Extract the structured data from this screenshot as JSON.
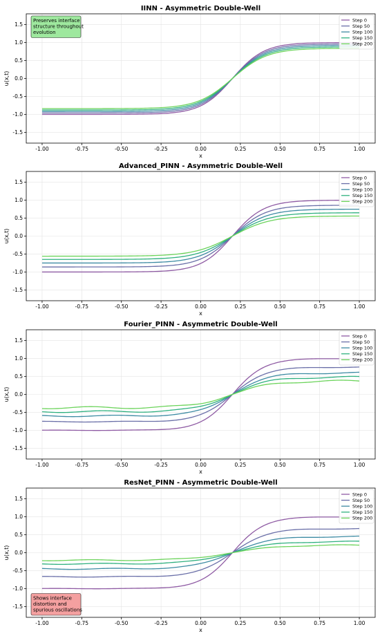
{
  "colors": {
    "step_0": "#8e5aa3",
    "step_50": "#6a6fa8",
    "step_100": "#3d8ba3",
    "step_150": "#2fb07f",
    "step_200": "#6bd35a",
    "note_good": "#9ee89e",
    "note_bad": "#f4a0a0"
  },
  "chart_data": [
    {
      "type": "line",
      "title": "IINN - Asymmetric Double-Well",
      "xlabel": "x",
      "ylabel": "u(x,t)",
      "xlim": [
        -1.1,
        1.1
      ],
      "ylim": [
        -1.8,
        1.8
      ],
      "xticks": [
        "-1.00",
        "-0.75",
        "-0.50",
        "-0.25",
        "0.00",
        "0.25",
        "0.50",
        "0.75",
        "1.00"
      ],
      "yticks": [
        "-1.5",
        "-1.0",
        "-0.5",
        "0.0",
        "0.5",
        "1.0",
        "1.5"
      ],
      "grid": true,
      "legend_position": "top-right",
      "annotation": {
        "text": [
          "Preserves interface",
          "structure throughout",
          "evolution"
        ],
        "position": "top-left",
        "style": "good"
      },
      "series": [
        {
          "name": "Step 0",
          "x0": 0.2,
          "width": 0.2,
          "amp": 1.0,
          "ripple": 0
        },
        {
          "name": "Step 50",
          "x0": 0.2,
          "width": 0.205,
          "amp": 0.96,
          "ripple": 0
        },
        {
          "name": "Step 100",
          "x0": 0.2,
          "width": 0.21,
          "amp": 0.92,
          "ripple": 0
        },
        {
          "name": "Step 150",
          "x0": 0.2,
          "width": 0.215,
          "amp": 0.88,
          "ripple": 0
        },
        {
          "name": "Step 200",
          "x0": 0.2,
          "width": 0.22,
          "amp": 0.84,
          "ripple": 0
        }
      ]
    },
    {
      "type": "line",
      "title": "Advanced_PINN - Asymmetric Double-Well",
      "xlabel": "x",
      "ylabel": "u(x,t)",
      "xlim": [
        -1.1,
        1.1
      ],
      "ylim": [
        -1.8,
        1.8
      ],
      "xticks": [
        "-1.00",
        "-0.75",
        "-0.50",
        "-0.25",
        "0.00",
        "0.25",
        "0.50",
        "0.75",
        "1.00"
      ],
      "yticks": [
        "-1.5",
        "-1.0",
        "-0.5",
        "0.0",
        "0.5",
        "1.0",
        "1.5"
      ],
      "grid": true,
      "legend_position": "top-right",
      "series": [
        {
          "name": "Step 0",
          "x0": 0.2,
          "width": 0.2,
          "amp": 1.0,
          "ripple": 0
        },
        {
          "name": "Step 50",
          "x0": 0.2,
          "width": 0.21,
          "amp": 0.86,
          "ripple": 0
        },
        {
          "name": "Step 100",
          "x0": 0.2,
          "width": 0.22,
          "amp": 0.75,
          "ripple": 0
        },
        {
          "name": "Step 150",
          "x0": 0.2,
          "width": 0.23,
          "amp": 0.65,
          "ripple": 0
        },
        {
          "name": "Step 200",
          "x0": 0.2,
          "width": 0.24,
          "amp": 0.56,
          "ripple": 0
        }
      ]
    },
    {
      "type": "line",
      "title": "Fourier_PINN - Asymmetric Double-Well",
      "xlabel": "x",
      "ylabel": "u(x,t)",
      "xlim": [
        -1.1,
        1.1
      ],
      "ylim": [
        -1.8,
        1.8
      ],
      "xticks": [
        "-1.00",
        "-0.75",
        "-0.50",
        "-0.25",
        "0.00",
        "0.25",
        "0.50",
        "0.75",
        "1.00"
      ],
      "yticks": [
        "-1.5",
        "-1.0",
        "-0.5",
        "0.0",
        "0.5",
        "1.0",
        "1.5"
      ],
      "grid": true,
      "legend_position": "top-right",
      "series": [
        {
          "name": "Step 0",
          "x0": 0.2,
          "width": 0.2,
          "amp": 1.0,
          "ripple": 0.005
        },
        {
          "name": "Step 50",
          "x0": 0.2,
          "width": 0.21,
          "amp": 0.76,
          "ripple": 0.01
        },
        {
          "name": "Step 100",
          "x0": 0.2,
          "width": 0.22,
          "amp": 0.6,
          "ripple": 0.02
        },
        {
          "name": "Step 150",
          "x0": 0.2,
          "width": 0.23,
          "amp": 0.48,
          "ripple": 0.025
        },
        {
          "name": "Step 200",
          "x0": 0.2,
          "width": 0.24,
          "amp": 0.37,
          "ripple": 0.03
        }
      ]
    },
    {
      "type": "line",
      "title": "ResNet_PINN - Asymmetric Double-Well",
      "xlabel": "x",
      "ylabel": "u(x,t)",
      "xlim": [
        -1.1,
        1.1
      ],
      "ylim": [
        -1.8,
        1.8
      ],
      "xticks": [
        "-1.00",
        "-0.75",
        "-0.50",
        "-0.25",
        "0.00",
        "0.25",
        "0.50",
        "0.75",
        "1.00"
      ],
      "yticks": [
        "-1.5",
        "-1.0",
        "-0.5",
        "0.0",
        "0.5",
        "1.0",
        "1.5"
      ],
      "grid": true,
      "legend_position": "top-right",
      "annotation": {
        "text": [
          "Shows interface",
          "distortion and",
          "spurious oscillations"
        ],
        "position": "bottom-left",
        "style": "bad"
      },
      "series": [
        {
          "name": "Step 0",
          "x0": 0.2,
          "width": 0.2,
          "amp": 1.0,
          "ripple": 0.005
        },
        {
          "name": "Step 50",
          "x0": 0.2,
          "width": 0.22,
          "amp": 0.67,
          "ripple": 0.01
        },
        {
          "name": "Step 100",
          "x0": 0.2,
          "width": 0.24,
          "amp": 0.45,
          "ripple": 0.015
        },
        {
          "name": "Step 150",
          "x0": 0.2,
          "width": 0.26,
          "amp": 0.31,
          "ripple": 0.015
        },
        {
          "name": "Step 200",
          "x0": 0.2,
          "width": 0.28,
          "amp": 0.21,
          "ripple": 0.015
        }
      ]
    }
  ]
}
